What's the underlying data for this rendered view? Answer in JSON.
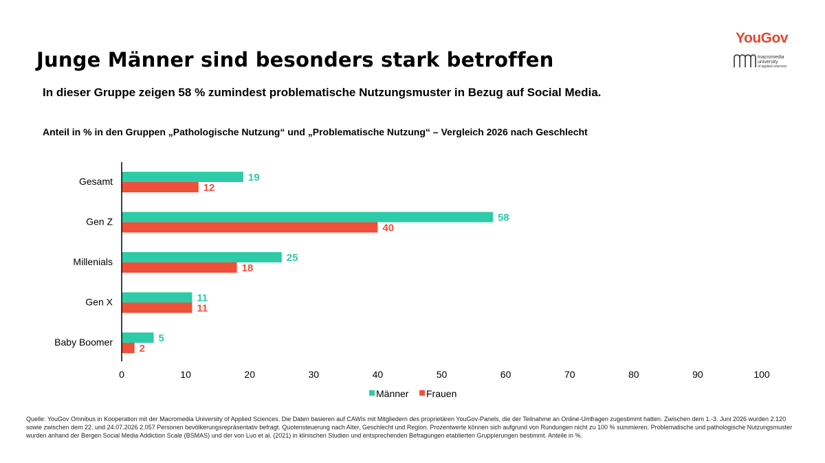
{
  "header": {
    "title": "Junge Männer sind besonders stark betroffen",
    "subtitle": "In dieser Gruppe zeigen 58 % zumindest problematische Nutzungsmuster in Bezug auf Social Media.",
    "logo_yougov": "YouGov",
    "logo_macromedia_line1": "macromedia",
    "logo_macromedia_line2": "university",
    "logo_macromedia_line3": "of applied sciences"
  },
  "colors": {
    "maenner": "#2ecba8",
    "frauen": "#f0503a",
    "brand": "#e6452f"
  },
  "chart_data": {
    "type": "bar",
    "orientation": "horizontal",
    "title": "Anteil in % in den Gruppen „Pathologische Nutzung“ und „Problematische Nutzung“ – Vergleich 2026 nach Geschlecht",
    "categories": [
      "Gesamt",
      "Gen Z",
      "Millenials",
      "Gen X",
      "Baby Boomer"
    ],
    "series": [
      {
        "name": "Männer",
        "values": [
          19,
          58,
          25,
          11,
          5
        ]
      },
      {
        "name": "Frauen",
        "values": [
          12,
          40,
          18,
          11,
          2
        ]
      }
    ],
    "xlim": [
      0,
      100
    ],
    "xticks": [
      "0",
      "10",
      "20",
      "30",
      "40",
      "50",
      "60",
      "70",
      "80",
      "90",
      "100"
    ],
    "grid": false,
    "legend_position": "bottom"
  },
  "source": "Quelle: YouGov Omnibus in Kooperation mit der Macromedia University of Applied Sciences. Die Daten basieren auf CAWIs mit Mitgliedern des proprietären YouGov-Panels, die der Teilnahme an Online-Umfragen zugestimmt hatten. Zwischen dem 1.-3. Juni 2026 wurden 2.120 sowie zwischen dem 22. und 24.07.2026 2.057 Personen bevölkerungsrepräsentativ befragt. Quotensteuerung nach Alter, Geschlecht und Region. Prozentwerte können sich aufgrund von Rundungen nicht zu 100 % summieren. Problematische und pathologische Nutzungsmuster wurden anhand der Bergen Social Media Addiction Scale (BSMAS) und der von Luo et al. (2021) in klinischen Studien und entsprechenden Befragungen etablierten Gruppierungen bestimmt. Anteile in %."
}
